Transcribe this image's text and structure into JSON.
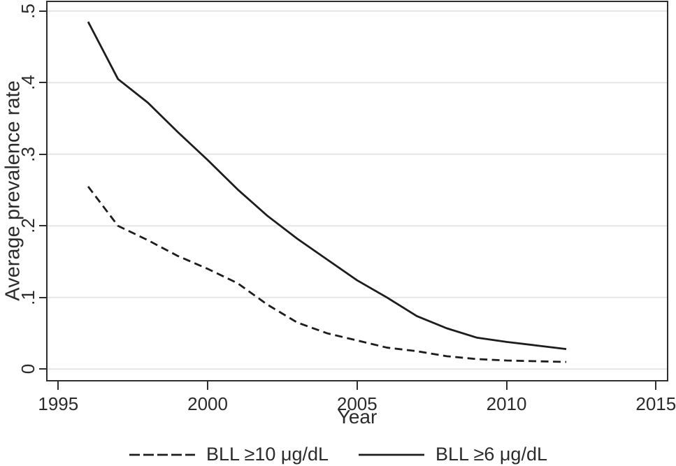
{
  "chart_data": {
    "type": "line",
    "title": "",
    "xlabel": "Year",
    "ylabel": "Average prevalence rate",
    "x_ticks": [
      1995,
      2000,
      2005,
      2010,
      2015
    ],
    "x_tick_labels": [
      "1995",
      "2000",
      "2005",
      "2010",
      "2015"
    ],
    "y_ticks": [
      0,
      0.1,
      0.2,
      0.3,
      0.4,
      0.5
    ],
    "y_tick_labels": [
      "0",
      ".1",
      ".2",
      ".3",
      ".4",
      ".5"
    ],
    "xlim": [
      1994.65,
      2015.4
    ],
    "ylim": [
      -0.035,
      0.527
    ],
    "grid": "horizontal",
    "legend_position": "bottom",
    "x": [
      1996,
      1997,
      1998,
      1999,
      2000,
      2001,
      2002,
      2003,
      2004,
      2005,
      2006,
      2007,
      2008,
      2009,
      2010,
      2011,
      2012
    ],
    "series": [
      {
        "name": "BLL ≥10 μg/dL",
        "style": "dashed",
        "values": [
          0.255,
          0.2,
          0.18,
          0.158,
          0.14,
          0.12,
          0.09,
          0.065,
          0.05,
          0.04,
          0.03,
          0.025,
          0.018,
          0.014,
          0.012,
          0.011,
          0.01
        ]
      },
      {
        "name": "BLL ≥6 μg/dL",
        "style": "solid",
        "values": [
          0.485,
          0.405,
          0.372,
          0.331,
          0.292,
          0.251,
          0.214,
          0.182,
          0.153,
          0.124,
          0.1,
          0.074,
          0.057,
          0.044,
          0.038,
          0.033,
          0.028
        ]
      }
    ],
    "colors": {
      "line": "#1d1d1d",
      "grid": "#e5e5e5",
      "axis": "#2e2e2e",
      "text": "#2b2b2b",
      "background": "#ffffff"
    }
  }
}
